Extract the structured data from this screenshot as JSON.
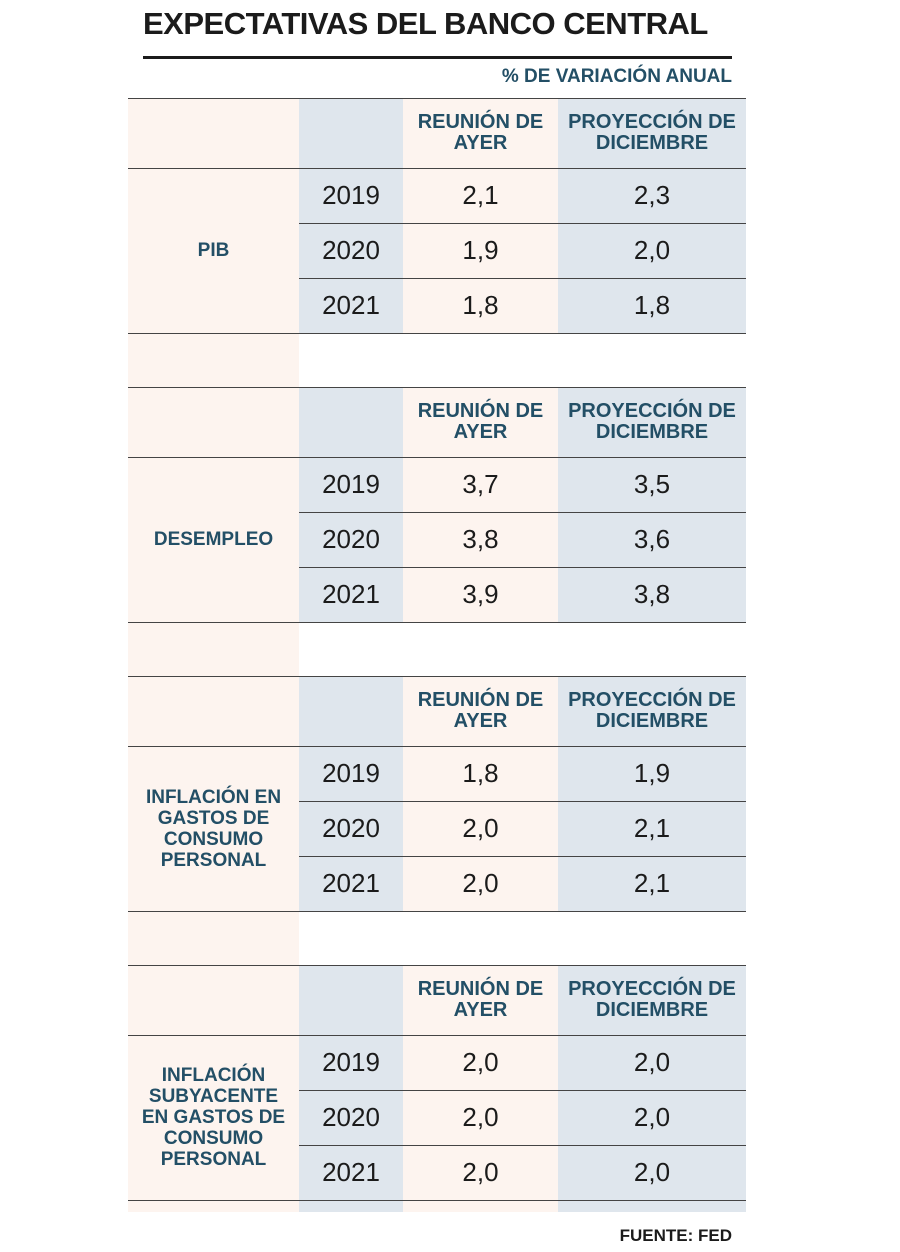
{
  "title": "EXPECTATIVAS DEL BANCO CENTRAL",
  "units": "% DE VARIACIÓN ANUAL",
  "source": "FUENTE: FED",
  "colors": {
    "accent": "#234f66",
    "shade": "#dfe6ed",
    "paper": "#fdf4ef",
    "text": "#1b1b1b"
  },
  "chart_data": {
    "type": "table",
    "title": "EXPECTATIVAS DEL BANCO CENTRAL",
    "unit": "% DE VARIACIÓN ANUAL",
    "columns": [
      "REUNIÓN DE AYER",
      "PROYECCIÓN DE DICIEMBRE"
    ],
    "sections": [
      {
        "label": "PIB",
        "col1": "REUNIÓN DE AYER",
        "col2": "PROYECCIÓN DE DICIEMBRE",
        "rows": [
          {
            "year": "2019",
            "reunion": "2,1",
            "proyeccion": "2,3"
          },
          {
            "year": "2020",
            "reunion": "1,9",
            "proyeccion": "2,0"
          },
          {
            "year": "2021",
            "reunion": "1,8",
            "proyeccion": "1,8"
          }
        ]
      },
      {
        "label": "DESEMPLEO",
        "col1": "REUNIÓN DE AYER",
        "col2": "PROYECCIÓN DE DICIEMBRE",
        "rows": [
          {
            "year": "2019",
            "reunion": "3,7",
            "proyeccion": "3,5"
          },
          {
            "year": "2020",
            "reunion": "3,8",
            "proyeccion": "3,6"
          },
          {
            "year": "2021",
            "reunion": "3,9",
            "proyeccion": "3,8"
          }
        ]
      },
      {
        "label": "INFLACIÓN EN GASTOS DE CONSUMO PERSONAL",
        "col1": "REUNIÓN DE AYER",
        "col2": "PROYECCIÓN DE DICIEMBRE",
        "rows": [
          {
            "year": "2019",
            "reunion": "1,8",
            "proyeccion": "1,9"
          },
          {
            "year": "2020",
            "reunion": "2,0",
            "proyeccion": "2,1"
          },
          {
            "year": "2021",
            "reunion": "2,0",
            "proyeccion": "2,1"
          }
        ]
      },
      {
        "label": "INFLACIÓN SUBYACENTE EN GASTOS DE CONSUMO PERSONAL",
        "col1": "REUNIÓN DE AYER",
        "col2": "PROYECCIÓN DE DICIEMBRE",
        "rows": [
          {
            "year": "2019",
            "reunion": "2,0",
            "proyeccion": "2,0"
          },
          {
            "year": "2020",
            "reunion": "2,0",
            "proyeccion": "2,0"
          },
          {
            "year": "2021",
            "reunion": "2,0",
            "proyeccion": "2,0"
          }
        ]
      }
    ]
  }
}
